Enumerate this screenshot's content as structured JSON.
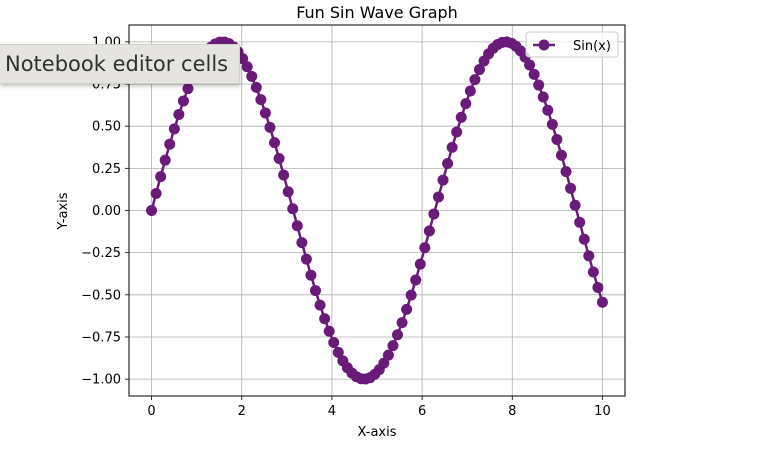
{
  "tooltip": {
    "text": "Notebook editor cells"
  },
  "chart_data": {
    "type": "line",
    "title": "Fun Sin Wave Graph",
    "xlabel": "X-axis",
    "ylabel": "Y-axis",
    "xlim": [
      -0.5,
      10.5
    ],
    "ylim": [
      -1.1,
      1.1
    ],
    "xticks": [
      0,
      2,
      4,
      6,
      8,
      10
    ],
    "xtick_labels": [
      "0",
      "2",
      "4",
      "6",
      "8",
      "10"
    ],
    "yticks": [
      -1.0,
      -0.75,
      -0.5,
      -0.25,
      0.0,
      0.25,
      0.5,
      0.75,
      1.0
    ],
    "ytick_labels": [
      "−1.00",
      "−0.75",
      "−0.50",
      "−0.25",
      "0.00",
      "0.25",
      "0.50",
      "0.75",
      "1.00"
    ],
    "grid": true,
    "legend": "top-right",
    "series": [
      {
        "name": "Sin(x)",
        "color": "#6a1b7a",
        "marker": "circle",
        "x_range": [
          0,
          10
        ],
        "num_points": 100,
        "function": "sin"
      }
    ]
  }
}
